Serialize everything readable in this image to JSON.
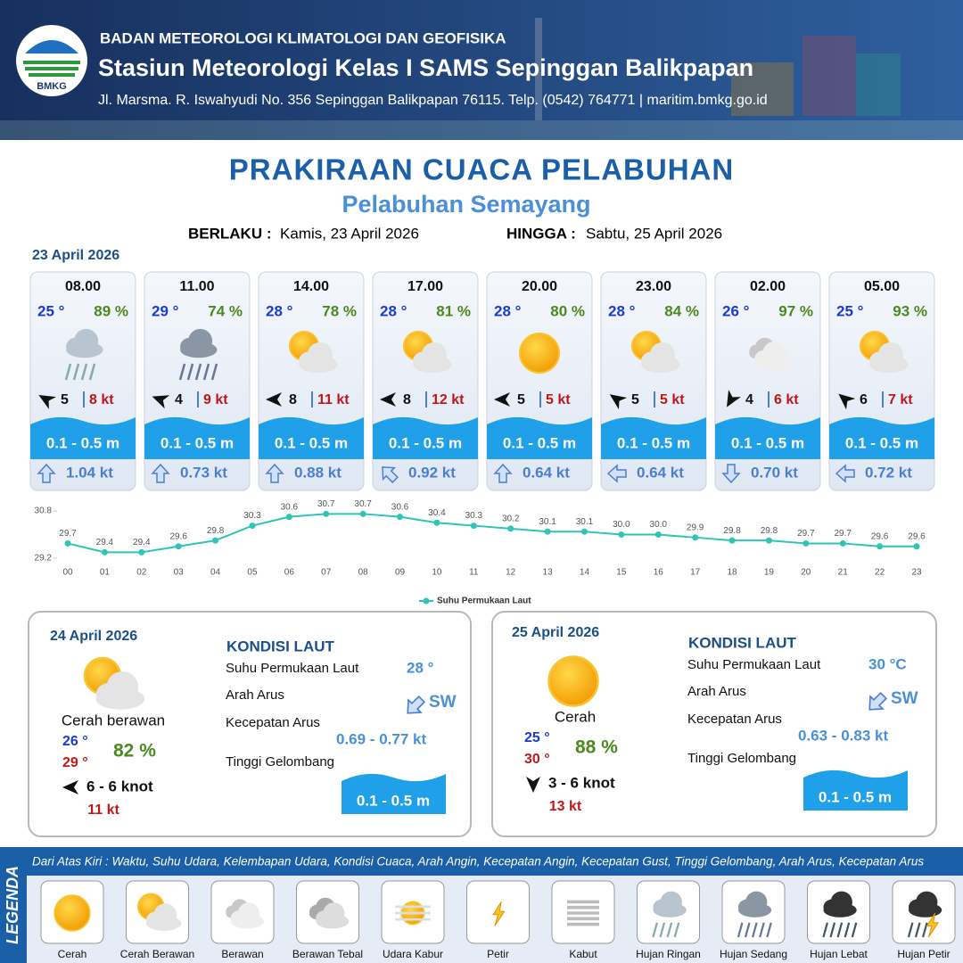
{
  "header": {
    "agency": "BADAN METEOROLOGI KLIMATOLOGI DAN GEOFISIKA",
    "station": "Stasiun Meteorologi Kelas I SAMS Sepinggan Balikpapan",
    "address": "Jl. Marsma. R. Iswahyudi No. 356 Sepinggan Balikpapan 76115. Telp. (0542) 764771 | maritim.bmkg.go.id",
    "logo_text": "BMKG"
  },
  "title": "PRAKIRAAN CUACA PELABUHAN",
  "subtitle": "Pelabuhan Semayang",
  "validity": {
    "from_label": "BERLAKU :",
    "from": "Kamis, 23 April 2026",
    "to_label": "HINGGA :",
    "to": "Sabtu, 25 April 2026"
  },
  "today": {
    "date": "23 April 2026",
    "forecasts": [
      {
        "time": "08.00",
        "temperature": "25 °",
        "humidity": "89 %",
        "wind_speed": "5",
        "gust": "8 kt",
        "wave": "0.1 - 0.5 m",
        "current": "1.04 kt"
      },
      {
        "time": "11.00",
        "temperature": "29 °",
        "humidity": "74 %",
        "wind_speed": "4",
        "gust": "9 kt",
        "wave": "0.1 - 0.5 m",
        "current": "0.73 kt"
      },
      {
        "time": "14.00",
        "temperature": "28 °",
        "humidity": "78 %",
        "wind_speed": "8",
        "gust": "11 kt",
        "wave": "0.1 - 0.5 m",
        "current": "0.88 kt"
      },
      {
        "time": "17.00",
        "temperature": "28 °",
        "humidity": "81 %",
        "wind_speed": "8",
        "gust": "12 kt",
        "wave": "0.1 - 0.5 m",
        "current": "0.92 kt"
      },
      {
        "time": "20.00",
        "temperature": "28 °",
        "humidity": "80 %",
        "wind_speed": "5",
        "gust": "5 kt",
        "wave": "0.1 - 0.5 m",
        "current": "0.64 kt"
      },
      {
        "time": "23.00",
        "temperature": "28 °",
        "humidity": "84 %",
        "wind_speed": "5",
        "gust": "5 kt",
        "wave": "0.1 - 0.5 m",
        "current": "0.64 kt"
      },
      {
        "time": "02.00",
        "temperature": "26 °",
        "humidity": "97 %",
        "wind_speed": "4",
        "gust": "6 kt",
        "wave": "0.1 - 0.5 m",
        "current": "0.70 kt"
      },
      {
        "time": "05.00",
        "temperature": "25 °",
        "humidity": "93 %",
        "wind_speed": "6",
        "gust": "7 kt",
        "wave": "0.1 - 0.5 m",
        "current": "0.72 kt"
      }
    ]
  },
  "chart_data": {
    "type": "line",
    "categories": [
      "00",
      "01",
      "02",
      "03",
      "04",
      "05",
      "06",
      "07",
      "08",
      "09",
      "10",
      "11",
      "12",
      "13",
      "14",
      "15",
      "16",
      "17",
      "18",
      "19",
      "20",
      "21",
      "22",
      "23"
    ],
    "series": [
      {
        "name": "Suhu Permukaan Laut",
        "color": "#2ec4b6",
        "values": [
          29.7,
          29.4,
          29.4,
          29.6,
          29.8,
          30.3,
          30.6,
          30.7,
          30.7,
          30.6,
          30.4,
          30.3,
          30.2,
          30.1,
          30.1,
          30.0,
          30.0,
          29.9,
          29.8,
          29.8,
          29.7,
          29.7,
          29.6,
          29.6
        ],
        "value_labels": [
          "29.7",
          "29.4",
          "29.4",
          "29.6",
          "29.8",
          "30.3",
          "30.6",
          "30.7",
          "30.7",
          "30.6",
          "30.4",
          "30.3",
          "30.2",
          "30.1",
          "30.1",
          "30.0",
          "30.0",
          "29.9",
          "29.8",
          "29.8",
          "29.7",
          "29.7",
          "29.6",
          "29.6"
        ]
      }
    ],
    "ylim": [
      29.2,
      30.8
    ],
    "yticks": [
      29.2,
      30.8
    ],
    "legend": "bottom"
  },
  "days": [
    {
      "date": "24 April 2026",
      "condition": "Cerah berawan",
      "temp_min": "26 °",
      "temp_max": "29 °",
      "humidity": "82 %",
      "wind": "6  - 6 knot",
      "gust": "11 kt",
      "sea": {
        "heading": "KONDISI LAUT",
        "labels": [
          "Suhu Permukaan Laut",
          "Arah Arus",
          "Kecepatan Arus",
          "Tinggi Gelombang"
        ],
        "temperature": "28 °",
        "current_direction": "SW",
        "current_speed": "0.69  - 0.77 kt",
        "wave": "0.1 - 0.5 m"
      }
    },
    {
      "date": "25 April 2026",
      "condition": "Cerah",
      "temp_min": "25 °",
      "temp_max": "30 °",
      "humidity": "88 %",
      "wind": "3  - 6 knot",
      "gust": "13 kt",
      "sea": {
        "heading": "KONDISI LAUT",
        "labels": [
          "Suhu Permukaan Laut",
          "Arah Arus",
          "Kecepatan Arus",
          "Tinggi Gelombang"
        ],
        "temperature": "30 °C",
        "current_direction": "SW",
        "current_speed": "0.63  - 0.83 kt",
        "wave": "0.1 - 0.5 m"
      }
    }
  ],
  "legend": {
    "title": "LEGENDA",
    "description": "Dari Atas Kiri : Waktu, Suhu Udara, Kelembapan Udara, Kondisi Cuaca, Arah Angin, Kecepatan Angin, Kecepatan Gust, Tinggi Gelombang, Arah Arus, Kecepatan Arus",
    "items": [
      "Cerah",
      "Cerah Berawan",
      "Berawan",
      "Berawan Tebal",
      "Udara Kabur",
      "Petir",
      "Kabut",
      "Hujan Ringan",
      "Hujan Sedang",
      "Hujan Lebat",
      "Hujan Petir"
    ]
  }
}
